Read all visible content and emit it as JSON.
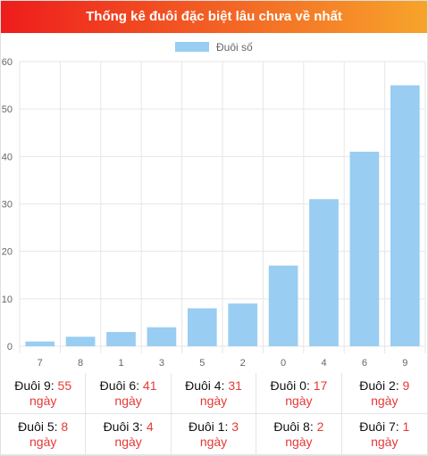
{
  "header": {
    "title": "Thống kê đuôi đặc biệt lâu chưa về nhất"
  },
  "colors": {
    "bar": "#99cdf2",
    "header_start": "#ee1c1c",
    "header_end": "#f7a42b",
    "value": "#e53935"
  },
  "chart_data": {
    "type": "bar",
    "title": "",
    "categories": [
      "7",
      "8",
      "1",
      "3",
      "5",
      "2",
      "0",
      "4",
      "6",
      "9"
    ],
    "series": [
      {
        "name": "Đuôi số",
        "values": [
          1,
          2,
          3,
          4,
          8,
          9,
          17,
          31,
          41,
          55
        ]
      }
    ],
    "xlabel": "",
    "ylabel": "",
    "ylim": [
      0,
      60
    ],
    "yticks": [
      "0",
      "10",
      "20",
      "30",
      "40",
      "50",
      "60"
    ],
    "grid": true,
    "legend": "top-center"
  },
  "stats": [
    {
      "label": "Đuôi 9:",
      "value": "55",
      "unit": "ngày"
    },
    {
      "label": "Đuôi 6:",
      "value": "41",
      "unit": "ngày"
    },
    {
      "label": "Đuôi 4:",
      "value": "31",
      "unit": "ngày"
    },
    {
      "label": "Đuôi 0:",
      "value": "17",
      "unit": "ngày"
    },
    {
      "label": "Đuôi 2:",
      "value": "9",
      "unit": "ngày"
    },
    {
      "label": "Đuôi 5:",
      "value": "8",
      "unit": "ngày"
    },
    {
      "label": "Đuôi 3:",
      "value": "4",
      "unit": "ngày"
    },
    {
      "label": "Đuôi 1:",
      "value": "3",
      "unit": "ngày"
    },
    {
      "label": "Đuôi 8:",
      "value": "2",
      "unit": "ngày"
    },
    {
      "label": "Đuôi 7:",
      "value": "1",
      "unit": "ngày"
    }
  ]
}
